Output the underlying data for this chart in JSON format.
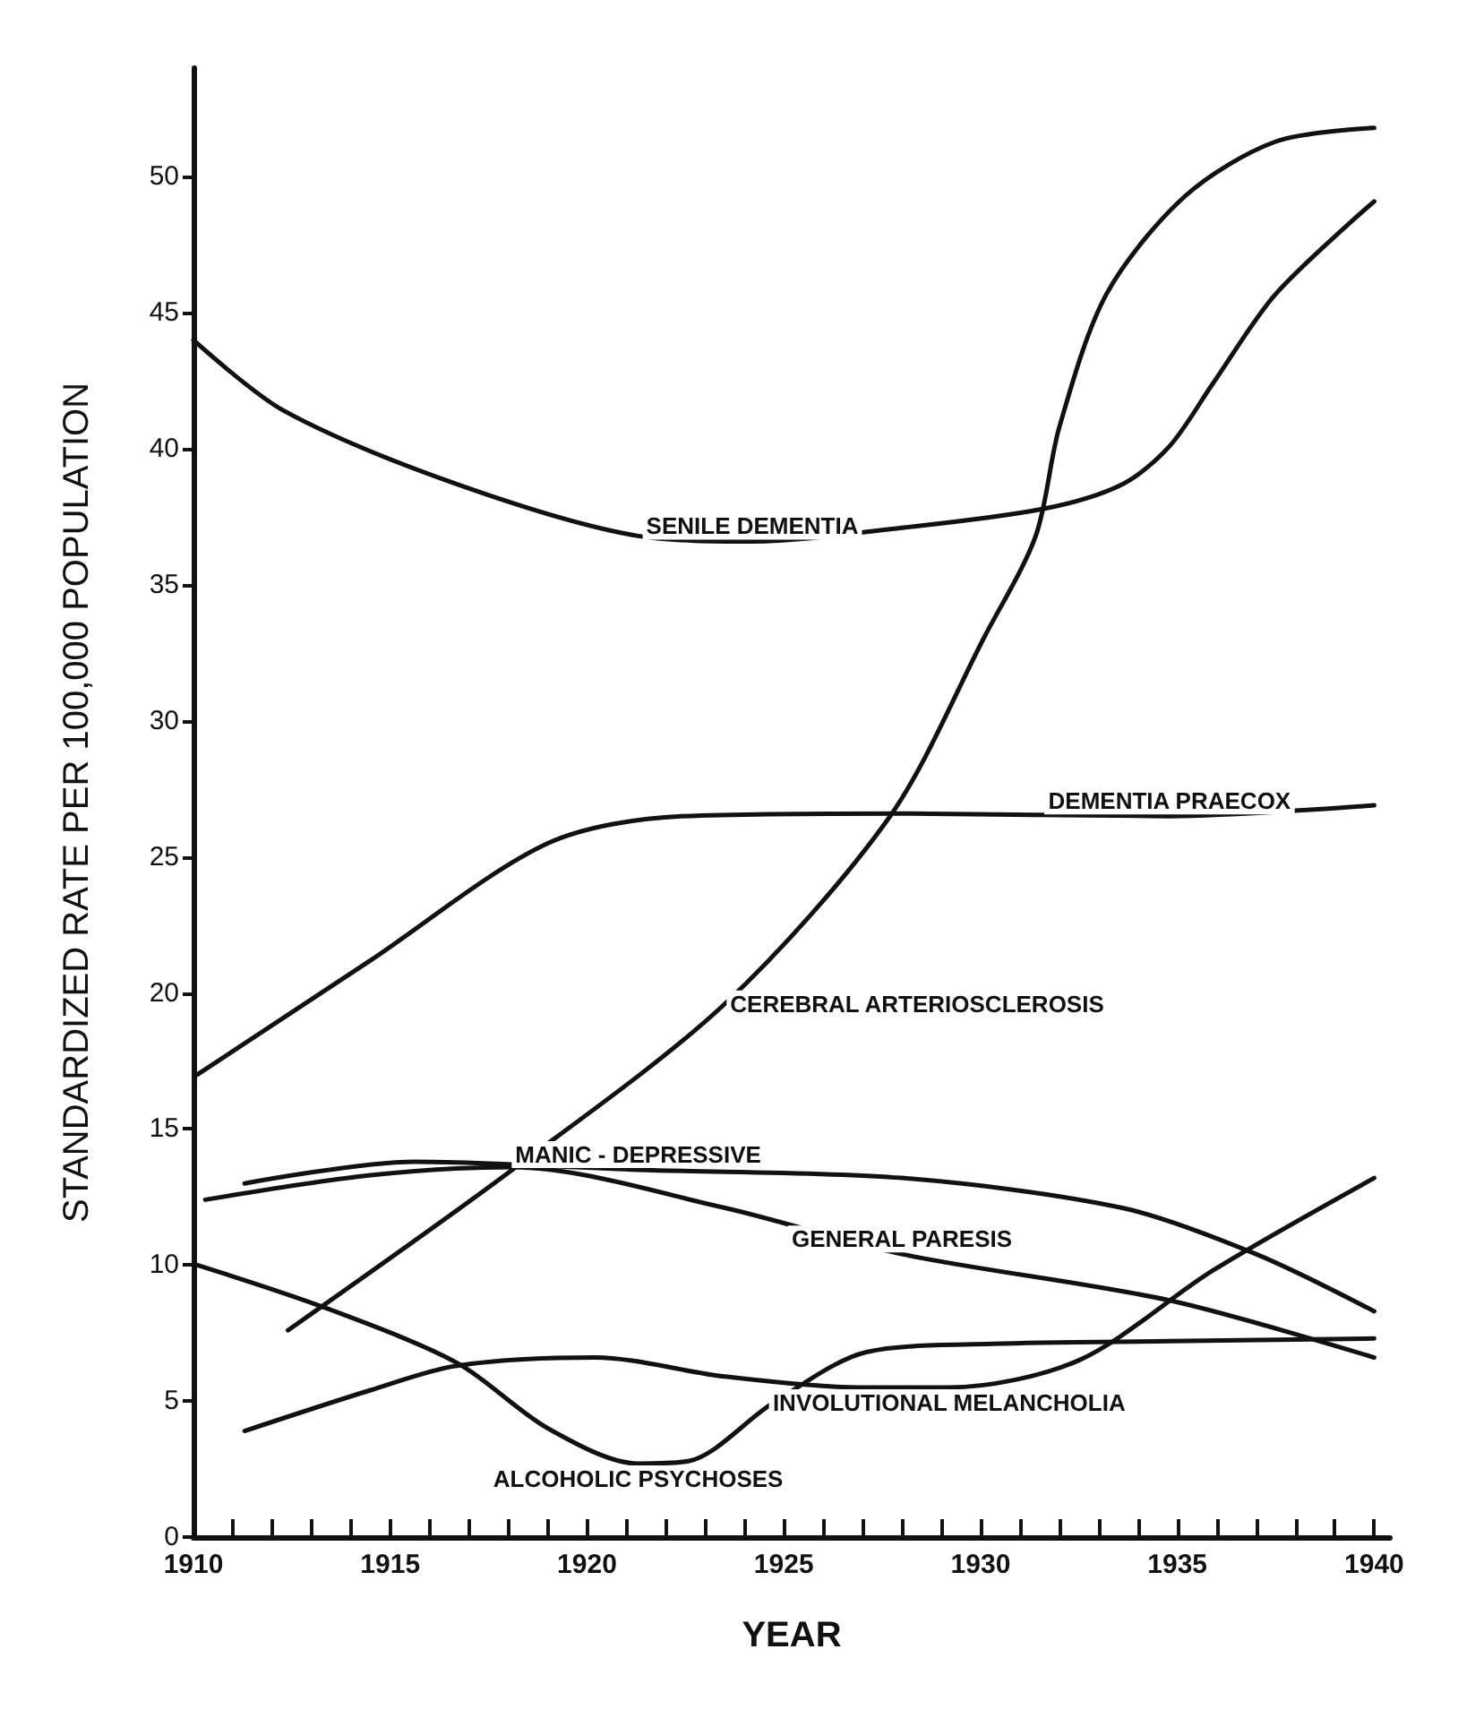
{
  "chart_data": {
    "type": "line",
    "xlabel": "YEAR",
    "ylabel": "STANDARDIZED RATE PER 100,000 POPULATION",
    "xlim": [
      1910,
      1940.4
    ],
    "ylim": [
      0,
      54
    ],
    "xticks": [
      1910,
      {
        "value": 1911,
        "label": null
      },
      {
        "value": 1912,
        "label": null
      },
      {
        "value": 1913,
        "label": null
      },
      {
        "value": 1914,
        "label": null
      },
      1915,
      {
        "value": 1916,
        "label": null
      },
      {
        "value": 1917,
        "label": null
      },
      {
        "value": 1918,
        "label": null
      },
      {
        "value": 1919,
        "label": null
      },
      1920,
      {
        "value": 1921,
        "label": null
      },
      {
        "value": 1922,
        "label": null
      },
      {
        "value": 1923,
        "label": null
      },
      {
        "value": 1924,
        "label": null
      },
      1925,
      {
        "value": 1926,
        "label": null
      },
      {
        "value": 1927,
        "label": null
      },
      {
        "value": 1928,
        "label": null
      },
      {
        "value": 1929,
        "label": null
      },
      1930,
      {
        "value": 1931,
        "label": null
      },
      {
        "value": 1932,
        "label": null
      },
      {
        "value": 1933,
        "label": null
      },
      {
        "value": 1934,
        "label": null
      },
      1935,
      {
        "value": 1936,
        "label": null
      },
      {
        "value": 1937,
        "label": null
      },
      {
        "value": 1938,
        "label": null
      },
      {
        "value": 1939,
        "label": null
      },
      1940
    ],
    "yticks": [
      0,
      5,
      10,
      15,
      20,
      25,
      30,
      35,
      40,
      45,
      50
    ],
    "grid": false,
    "legend": false,
    "marker": "none",
    "line_style": "solid",
    "series": [
      {
        "name": "SENILE DEMENTIA",
        "color": "#111111",
        "x": [
          1910,
          1912.3,
          1916.7,
          1921.3,
          1924.2,
          1928,
          1931.6,
          1933.6,
          1934.8,
          1935.9,
          1937.5,
          1940
        ],
        "values": [
          44.0,
          41.4,
          38.7,
          36.8,
          36.6,
          37.1,
          37.8,
          38.7,
          40.1,
          42.4,
          45.7,
          49.1
        ]
      },
      {
        "name": "CEREBRAL ARTERIOSCLEROSIS",
        "color": "#111111",
        "x": [
          1912.4,
          1918.1,
          1923.5,
          1927.7,
          1930.1,
          1931.4,
          1932,
          1933.2,
          1935.2,
          1937.5,
          1940
        ],
        "values": [
          7.6,
          13.5,
          19.6,
          26.5,
          33.1,
          36.8,
          40.8,
          45.7,
          49.3,
          51.3,
          51.8
        ]
      },
      {
        "name": "DEMENTIA PRAECOX",
        "color": "#111111",
        "x": [
          1910.1,
          1914.5,
          1919,
          1922.4,
          1928,
          1934.8,
          1940
        ],
        "values": [
          17.0,
          21.2,
          25.5,
          26.5,
          26.6,
          26.5,
          26.9
        ]
      },
      {
        "name": "MANIC - DEPRESSIVE",
        "color": "#111111",
        "x": [
          1911.3,
          1915.6,
          1921.3,
          1928,
          1933.6,
          1937,
          1940
        ],
        "values": [
          13.0,
          13.8,
          13.5,
          13.2,
          12.1,
          10.4,
          8.3
        ]
      },
      {
        "name": "GENERAL PARESIS",
        "color": "#111111",
        "x": [
          1910.3,
          1914.5,
          1918.1,
          1923.5,
          1928,
          1934.8,
          1940
        ],
        "values": [
          12.4,
          13.3,
          13.6,
          12.1,
          10.4,
          8.7,
          6.6
        ]
      },
      {
        "name": "ALCOHOLIC PSYCHOSES",
        "color": "#111111",
        "x": [
          1910.1,
          1913.4,
          1916.7,
          1919,
          1921.3,
          1922.6,
          1924.7,
          1927.1,
          1930.3,
          1934.8,
          1940
        ],
        "values": [
          10.0,
          8.4,
          6.4,
          4.0,
          2.7,
          2.8,
          4.9,
          6.8,
          7.1,
          7.2,
          7.3
        ]
      },
      {
        "name": "INVOLUTIONAL MELANCHOLIA",
        "color": "#111111",
        "x": [
          1911.3,
          1914.5,
          1916.7,
          1920.2,
          1923.5,
          1926.9,
          1929.2,
          1932.5,
          1935.9,
          1940
        ],
        "values": [
          3.9,
          5.4,
          6.3,
          6.6,
          5.9,
          5.5,
          5.5,
          6.5,
          9.8,
          13.2
        ]
      }
    ]
  }
}
